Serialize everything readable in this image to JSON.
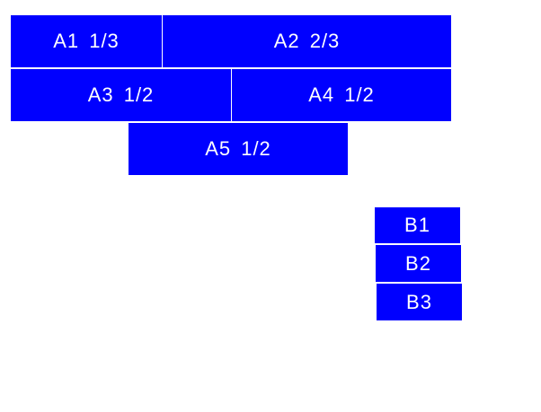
{
  "colors": {
    "box": "#0000ff",
    "text": "#ffffff"
  },
  "group_a": [
    {
      "label": "A1 1/3"
    },
    {
      "label": "A2 2/3"
    },
    {
      "label": "A3 1/2"
    },
    {
      "label": "A4 1/2"
    },
    {
      "label": "A5 1/2"
    }
  ],
  "group_b": [
    {
      "label": "B1"
    },
    {
      "label": "B2"
    },
    {
      "label": "B3"
    }
  ]
}
